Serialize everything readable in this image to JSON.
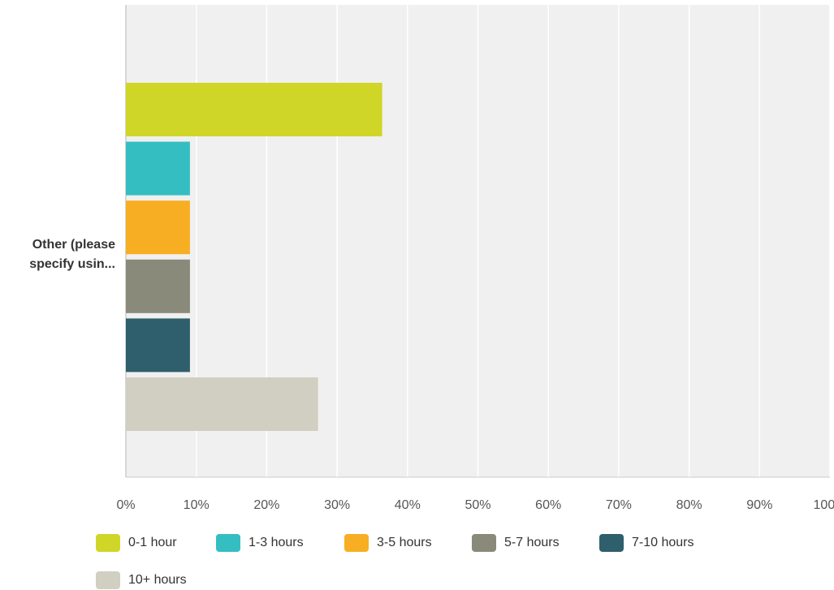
{
  "chart_data": {
    "type": "bar",
    "orientation": "horizontal",
    "categories": [
      "Other (please specify usin..."
    ],
    "series": [
      {
        "name": "0-1 hour",
        "values": [
          36.4
        ],
        "color": "#cfd628"
      },
      {
        "name": "1-3 hours",
        "values": [
          9.1
        ],
        "color": "#35bec1"
      },
      {
        "name": "3-5 hours",
        "values": [
          9.1
        ],
        "color": "#f7ae22"
      },
      {
        "name": "5-7 hours",
        "values": [
          9.1
        ],
        "color": "#8a8a7a"
      },
      {
        "name": "7-10 hours",
        "values": [
          9.1
        ],
        "color": "#2f5e6c"
      },
      {
        "name": "10+ hours",
        "values": [
          27.3
        ],
        "color": "#d0cfc1"
      }
    ],
    "xlim": [
      0,
      100
    ],
    "xticks": [
      "0%",
      "10%",
      "20%",
      "30%",
      "40%",
      "50%",
      "60%",
      "70%",
      "80%",
      "90%",
      "100%"
    ],
    "grid": true,
    "legend": "bottom",
    "plot_background": "#f0f0f0",
    "grid_color": "#ffffff"
  },
  "category_label_lines": [
    "Other (please",
    "specify usin..."
  ]
}
